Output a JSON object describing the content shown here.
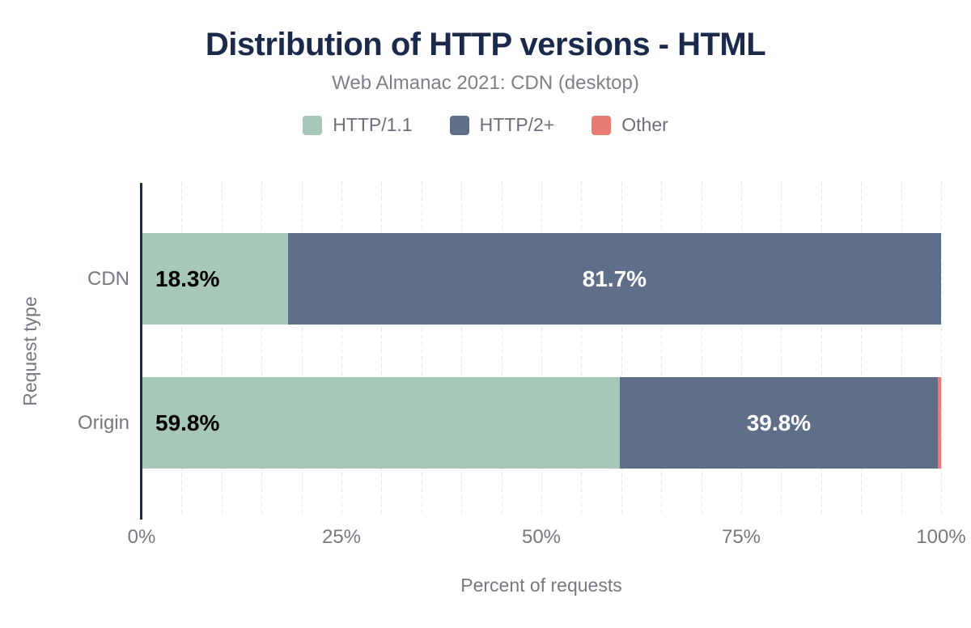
{
  "page": {
    "title": "Distribution of HTTP versions - HTML",
    "subtitle": "Web Almanac 2021: CDN (desktop)"
  },
  "colors": {
    "title_navy": "#1b2a4a",
    "axis_line": "#1b2a4a",
    "muted_text": "#75797f",
    "subtitle_gray": "#7c8187",
    "legend_gray": "#6b7078",
    "gridline": "#e9e9e9",
    "label_on_green": "#000000",
    "label_on_blue": "#ffffff"
  },
  "chart_data": {
    "type": "bar",
    "orientation": "horizontal",
    "stacked": true,
    "title": "Distribution of HTTP versions - HTML",
    "subtitle": "Web Almanac 2021: CDN (desktop)",
    "categories": [
      "CDN",
      "Origin"
    ],
    "series": [
      {
        "name": "HTTP/1.1",
        "color": "#a7c8b6",
        "values": [
          18.3,
          59.8
        ],
        "labels": [
          "18.3%",
          "59.8%"
        ],
        "label_align": "inside-left",
        "label_color": "#000000"
      },
      {
        "name": "HTTP/2+",
        "color": "#5f6f8a",
        "values": [
          81.7,
          39.8
        ],
        "labels": [
          "81.7%",
          "39.8%"
        ],
        "label_align": "center",
        "label_color": "#ffffff"
      },
      {
        "name": "Other",
        "color": "#e87c74",
        "values": [
          0.0,
          0.4
        ],
        "labels": [
          "",
          ""
        ],
        "label_align": "none",
        "label_color": "#ffffff"
      }
    ],
    "xlabel": "Percent of requests",
    "ylabel": "Request type",
    "xlim": [
      0,
      100
    ],
    "x_ticks": [
      0,
      25,
      50,
      75,
      100
    ],
    "x_tick_labels": [
      "0%",
      "25%",
      "50%",
      "75%",
      "100%"
    ],
    "gridline_step": 5,
    "grid": true,
    "legend_position": "top"
  }
}
